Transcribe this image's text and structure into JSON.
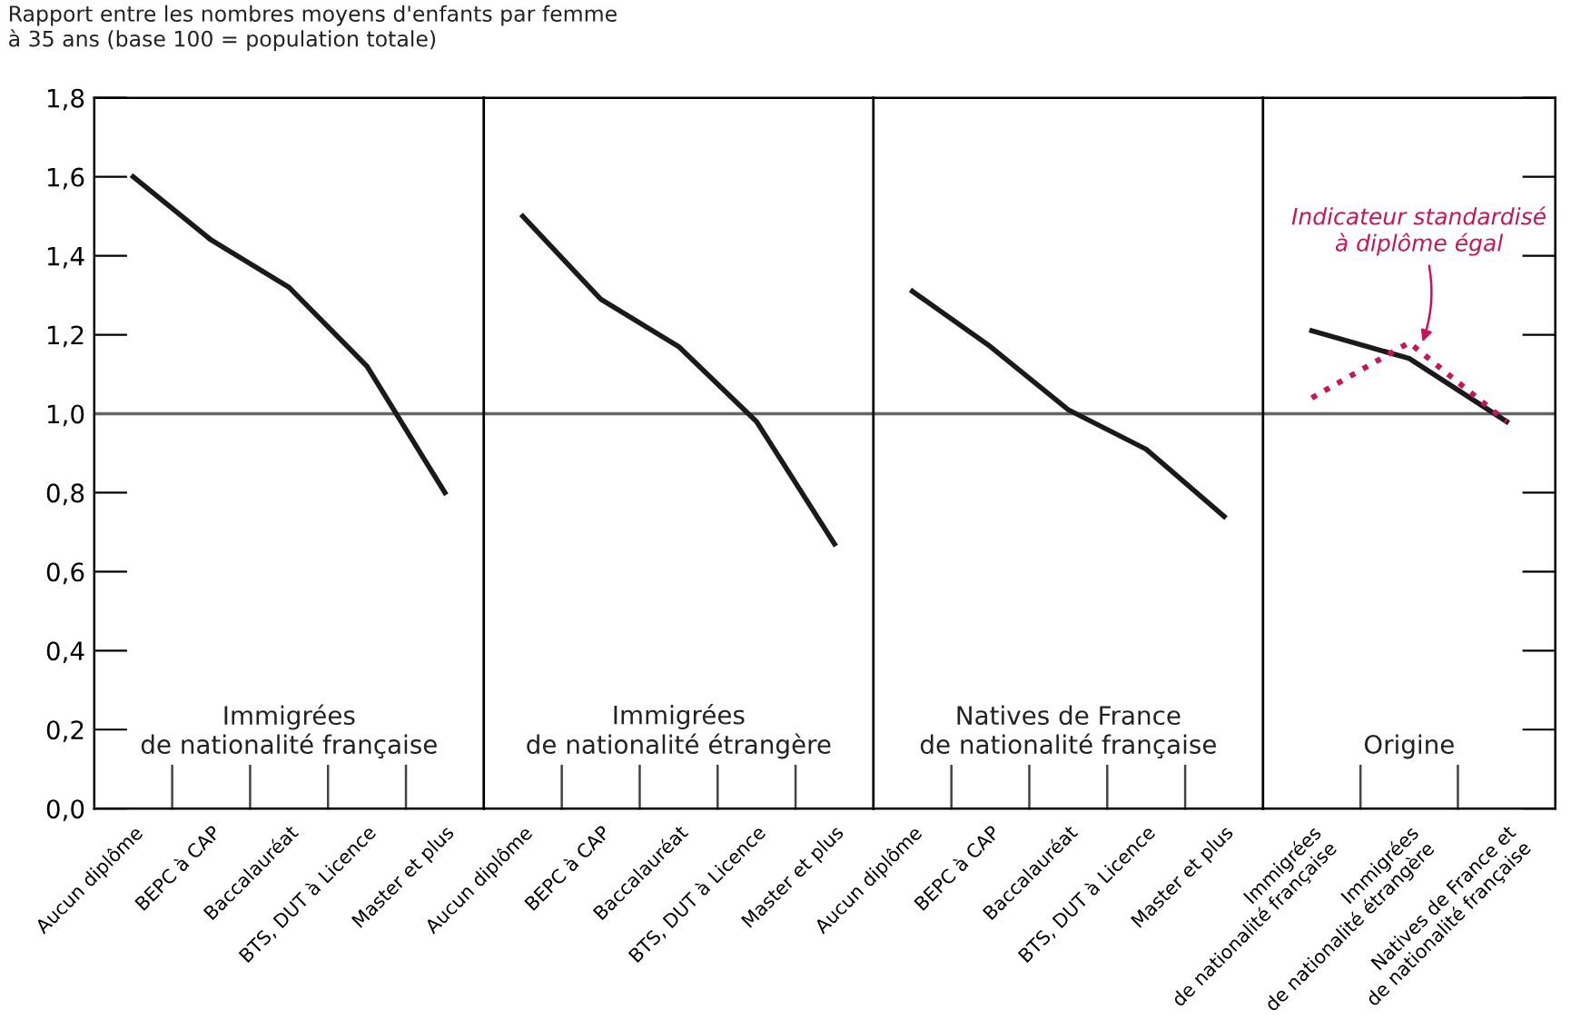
{
  "chart_data": [
    {
      "type": "line",
      "title": "Immigrées\nde nationalité française",
      "ylabel": "Rapport entre les nombres moyens d'enfants par femme\nà 35 ans (base 100 = population totale)",
      "categories": [
        "Aucun diplôme",
        "BEPC à CAP",
        "Baccalauréat",
        "BTS, DUT à Licence",
        "Master et plus"
      ],
      "series": [
        {
          "color": "#1a1a1a",
          "values": [
            1.6,
            1.44,
            1.32,
            1.12,
            0.8
          ]
        }
      ],
      "ylim": [
        0,
        1.8
      ],
      "yticks": [
        {
          "value": 0,
          "label": "0,0"
        },
        {
          "value": 0.2,
          "label": "0,2"
        },
        {
          "value": 0.4,
          "label": "0,4"
        },
        {
          "value": 0.6,
          "label": "0,6"
        },
        {
          "value": 0.8,
          "label": "0,8"
        },
        {
          "value": 1.0,
          "label": "1,0"
        },
        {
          "value": 1.2,
          "label": "1,2"
        },
        {
          "value": 1.4,
          "label": "1,4"
        },
        {
          "value": 1.6,
          "label": "1,6"
        },
        {
          "value": 1.8,
          "label": "1,8"
        }
      ],
      "ref_lines": [
        {
          "axis": "y",
          "value": 1.0,
          "color": "#666666"
        }
      ]
    },
    {
      "type": "line",
      "title": "Immigrées\nde nationalité étrangère",
      "categories": [
        "Aucun diplôme",
        "BEPC à CAP",
        "Baccalauréat",
        "BTS, DUT à Licence",
        "Master et plus"
      ],
      "series": [
        {
          "color": "#1a1a1a",
          "values": [
            1.5,
            1.29,
            1.17,
            0.98,
            0.67
          ]
        }
      ],
      "ylim": [
        0,
        1.8
      ],
      "tick_labels": "x",
      "ref_lines": [
        {
          "axis": "y",
          "value": 1.0,
          "color": "#666666"
        }
      ]
    },
    {
      "type": "line",
      "title": "Natives de France\nde nationalité française",
      "categories": [
        "Aucun diplôme",
        "BEPC à CAP",
        "Baccalauréat",
        "BTS, DUT à Licence",
        "Master et plus"
      ],
      "series": [
        {
          "color": "#1a1a1a",
          "values": [
            1.31,
            1.17,
            1.01,
            0.91,
            0.74
          ]
        }
      ],
      "ylim": [
        0,
        1.8
      ],
      "tick_labels": "x",
      "ref_lines": [
        {
          "axis": "y",
          "value": 1.0,
          "color": "#666666"
        }
      ]
    },
    {
      "type": "line",
      "title": "Origine",
      "categories": [
        "Immigrées\nde nationalité française",
        "Immigrées\nde nationalité étrangère",
        "Natives de France et\nde nationalité française"
      ],
      "series": [
        {
          "color": "#1a1a1a",
          "values": [
            1.21,
            1.14,
            0.98
          ]
        },
        {
          "name": "Indicateur standardisé\nà diplôme égal",
          "color": "#c8145a",
          "line_style": "dotted",
          "values": [
            1.04,
            1.18,
            0.98
          ]
        }
      ],
      "ylim": [
        0,
        1.8
      ],
      "tick_labels": "x",
      "ref_lines": [
        {
          "axis": "y",
          "value": 1.0,
          "color": "#666666"
        }
      ]
    }
  ]
}
